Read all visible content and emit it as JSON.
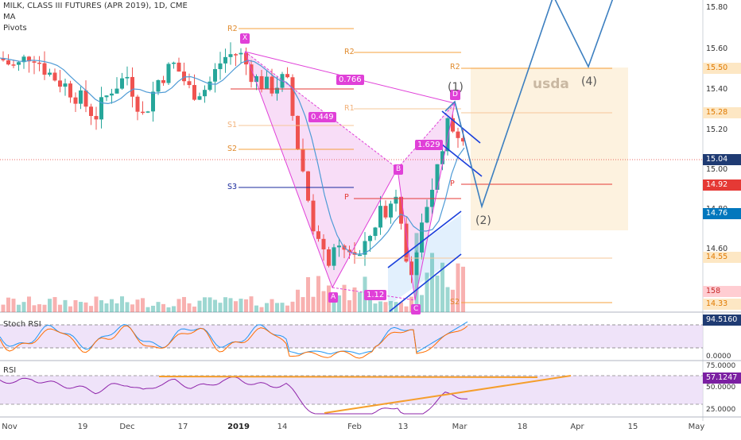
{
  "header": {
    "symbol_line": "MILK, CLASS III FUTURES (APR 2019), 1D, CME",
    "indicator_ma": "MA",
    "indicator_pivots": "Pivots"
  },
  "price_axis": {
    "ticks": [
      "15.80",
      "15.60",
      "15.40",
      "15.20",
      "15.00",
      "14.80",
      "14.60"
    ],
    "badges": [
      {
        "text": "15.50",
        "bg": "#fde7c4",
        "fg": "#e07a00"
      },
      {
        "text": "15.28",
        "bg": "#fde7c4",
        "fg": "#e07a00"
      },
      {
        "text": "15.04",
        "bg": "#1f3b73",
        "fg": "#ffffff"
      },
      {
        "text": "14.92",
        "bg": "#e53935",
        "fg": "#ffffff"
      },
      {
        "text": "14.76",
        "bg": "#0277bd",
        "fg": "#ffffff"
      },
      {
        "text": "14.55",
        "bg": "#fde7c4",
        "fg": "#e07a00"
      },
      {
        "text": "158",
        "bg": "#ffcdd2",
        "fg": "#c62828"
      },
      {
        "text": "14.33",
        "bg": "#fde7c4",
        "fg": "#e07a00"
      }
    ]
  },
  "stoch_pane": {
    "title": "Stoch RSI",
    "value_badge": "94.5160",
    "badge_bg": "#1f3b73",
    "zero_label": "0.0000"
  },
  "rsi_pane": {
    "title": "RSI",
    "value_badge": "57.1247",
    "badge_bg": "#7b1fa2",
    "tick_75": "75.0000",
    "tick_50": "50.0000",
    "tick_25": "25.0000"
  },
  "time_axis": {
    "labels": [
      {
        "text": "Nov",
        "bold": false
      },
      {
        "text": "19",
        "bold": false
      },
      {
        "text": "Dec",
        "bold": false
      },
      {
        "text": "17",
        "bold": false
      },
      {
        "text": "2019",
        "bold": true
      },
      {
        "text": "14",
        "bold": false
      },
      {
        "text": "Feb",
        "bold": false
      },
      {
        "text": "13",
        "bold": false
      },
      {
        "text": "Mar",
        "bold": false
      },
      {
        "text": "18",
        "bold": false
      },
      {
        "text": "Apr",
        "bold": false
      },
      {
        "text": "15",
        "bold": false
      },
      {
        "text": "May",
        "bold": false
      }
    ]
  },
  "annotations": {
    "pivot_levels_left": [
      "R2",
      "R1",
      "P",
      "S1",
      "S2",
      "S3"
    ],
    "pivot_levels_right": [
      "R2",
      "R1",
      "P",
      "S2"
    ],
    "harmonic_points": [
      "X",
      "A",
      "B",
      "C",
      "D"
    ],
    "ratios": [
      "0.766",
      "0.449",
      "1.629",
      "1.12"
    ],
    "waves": [
      "(1)",
      "(2)",
      "(4)"
    ],
    "usda_label": "usda"
  },
  "colors": {
    "bull": "#26a69a",
    "bear": "#ef5350",
    "ma_line": "#4f9bd6",
    "projection": "#3c7fc0",
    "pattern": "#e040d8",
    "pattern_fill": "#f3c6f2",
    "orange_level": "#f5a03c",
    "channel": "#1a3fdc",
    "osc_bg": "#e9d9f7"
  }
}
